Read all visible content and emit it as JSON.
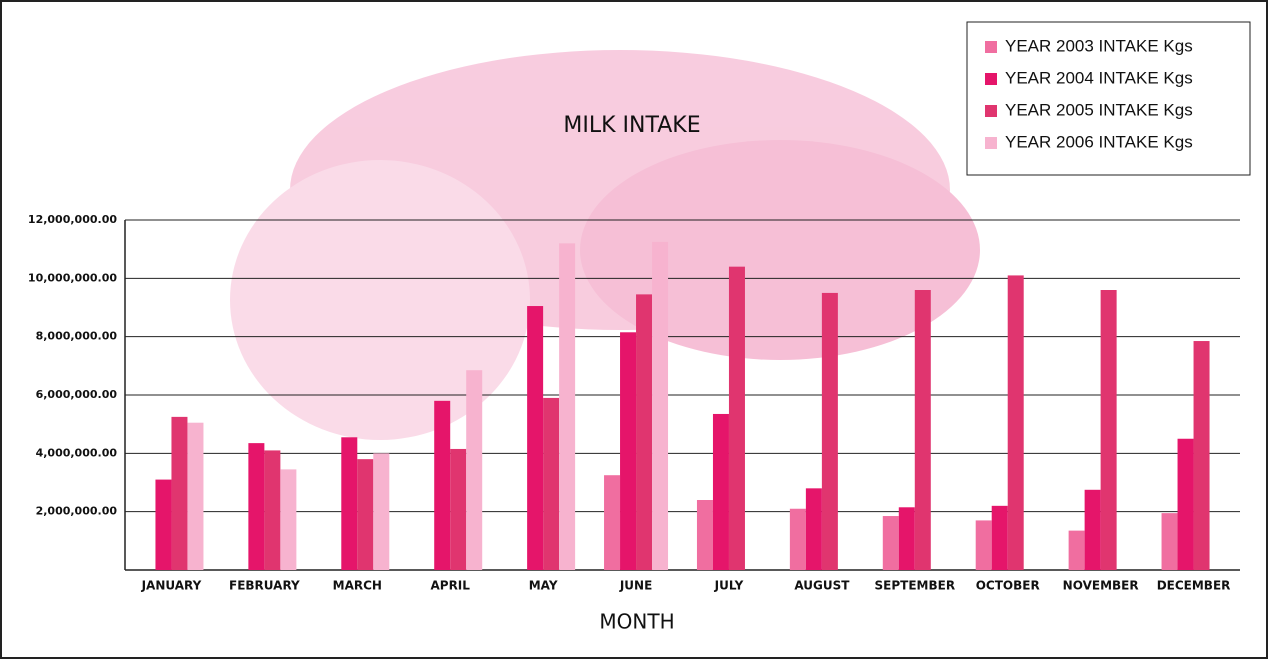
{
  "chart_data": {
    "type": "bar",
    "title": "MILK INTAKE",
    "x_label": "MONTH",
    "categories": [
      "JANUARY",
      "FEBRUARY",
      "MARCH",
      "APRIL",
      "MAY",
      "JUNE",
      "JULY",
      "AUGUST",
      "SEPTEMBER",
      "OCTOBER",
      "NOVEMBER",
      "DECEMBER"
    ],
    "series": [
      {
        "name": "YEAR 2003 INTAKE Kgs",
        "color": "#f06ea0",
        "values": [
          null,
          null,
          null,
          null,
          null,
          3250000,
          2400000,
          2100000,
          1850000,
          1700000,
          1350000,
          1950000
        ]
      },
      {
        "name": "YEAR 2004 INTAKE Kgs",
        "color": "#e5156a",
        "values": [
          3100000,
          4350000,
          4550000,
          5800000,
          9050000,
          8150000,
          5350000,
          2800000,
          2150000,
          2200000,
          2750000,
          4500000
        ]
      },
      {
        "name": "YEAR 2005 INTAKE Kgs",
        "color": "#e0356f",
        "values": [
          5250000,
          4100000,
          3800000,
          4150000,
          5900000,
          9450000,
          10400000,
          9500000,
          9600000,
          10100000,
          9600000,
          7850000
        ]
      },
      {
        "name": "YEAR 2006 INTAKE Kgs",
        "color": "#f7b3cf",
        "values": [
          5050000,
          3450000,
          4000000,
          6850000,
          11200000,
          11250000,
          null,
          null,
          null,
          null,
          null,
          null
        ]
      }
    ],
    "ylim": [
      0,
      12000000
    ],
    "yticks": [
      {
        "value": 2000000,
        "label": "2,000,000.00"
      },
      {
        "value": 4000000,
        "label": "4,000,000.00"
      },
      {
        "value": 6000000,
        "label": "6,000,000.00"
      },
      {
        "value": 8000000,
        "label": "8,000,000.00"
      },
      {
        "value": 10000000,
        "label": "10,000,000.00"
      },
      {
        "value": 12000000,
        "label": "12,000,000.00"
      }
    ],
    "grid": true,
    "legend": "top-right"
  }
}
